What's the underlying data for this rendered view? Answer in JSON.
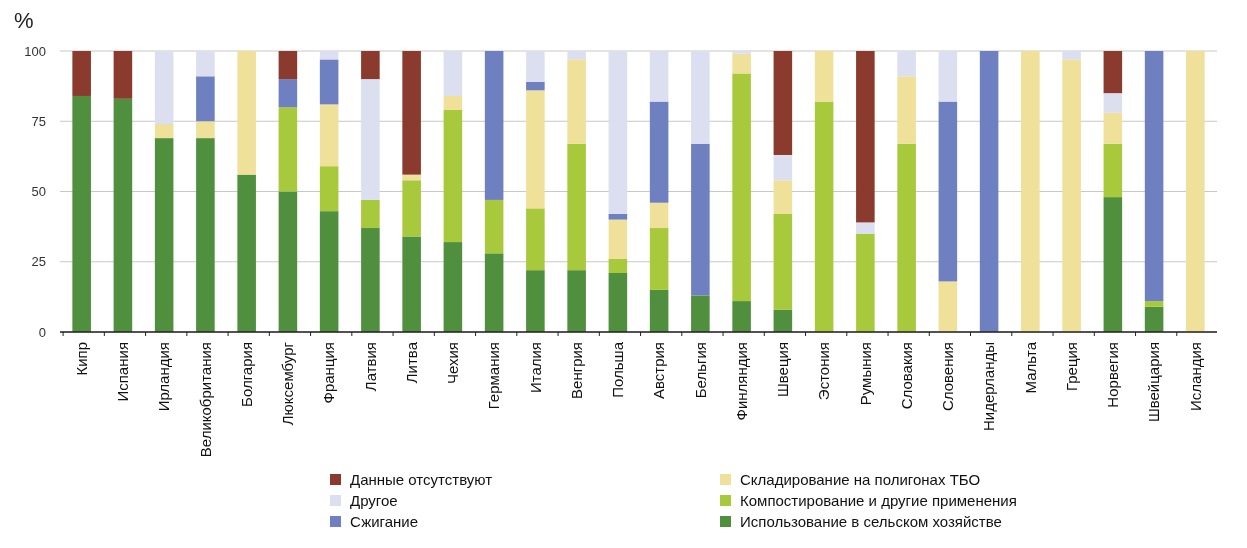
{
  "chart_data": {
    "type": "bar",
    "stacked": true,
    "ylabel": "%",
    "ylim": [
      0,
      100
    ],
    "yticks": [
      0,
      25,
      50,
      75,
      100
    ],
    "grid": "y",
    "legend": "bottom",
    "categories": [
      "Кипр",
      "Испания",
      "Ирландия",
      "Великобритания",
      "Болгария",
      "Люксембург",
      "Франция",
      "Латвия",
      "Литва",
      "Чехия",
      "Германия",
      "Италия",
      "Венгрия",
      "Польша",
      "Австрия",
      "Бельгия",
      "Финляндия",
      "Швеция",
      "Эстония",
      "Румыния",
      "Словакия",
      "Словения",
      "Нидерланды",
      "Мальта",
      "Греция",
      "Норвегия",
      "Швейцария",
      "Исландия"
    ],
    "series": [
      {
        "name": "Использование в сельском хозяйстве",
        "color": "#4f8f3e",
        "values": [
          84,
          83,
          69,
          69,
          56,
          50,
          43,
          37,
          34,
          32,
          28,
          22,
          22,
          21,
          15,
          13,
          11,
          8,
          0,
          0,
          0,
          0,
          0,
          0,
          0,
          48,
          9,
          0
        ]
      },
      {
        "name": "Компостирование и другие применения",
        "color": "#a9c93c",
        "values": [
          0,
          0,
          0,
          0,
          0,
          30,
          16,
          10,
          20,
          47,
          19,
          22,
          45,
          5,
          22,
          0,
          81,
          34,
          82,
          35,
          67,
          0,
          0,
          0,
          0,
          19,
          2,
          0
        ]
      },
      {
        "name": "Складирование на полигонах ТБО",
        "color": "#efe09a",
        "values": [
          0,
          0,
          5,
          6,
          44,
          0,
          22,
          0,
          2,
          5,
          0,
          42,
          30,
          14,
          9,
          0,
          7,
          12,
          18,
          0,
          24,
          18,
          0,
          100,
          97,
          11,
          0,
          100
        ]
      },
      {
        "name": "Сжигание",
        "color": "#6f80c0",
        "values": [
          0,
          0,
          0,
          16,
          0,
          10,
          16,
          0,
          0,
          0,
          53,
          3,
          0,
          2,
          36,
          54,
          0,
          0,
          0,
          0,
          0,
          64,
          100,
          0,
          0,
          0,
          89,
          0
        ]
      },
      {
        "name": "Другое",
        "color": "#dcdff0",
        "values": [
          0,
          0,
          26,
          9,
          0,
          0,
          3,
          43,
          0,
          16,
          0,
          11,
          3,
          58,
          18,
          33,
          1,
          9,
          0,
          4,
          9,
          18,
          0,
          0,
          3,
          7,
          0,
          0
        ]
      },
      {
        "name": "Данные отсутствуют",
        "color": "#8b3a2e",
        "values": [
          16,
          17,
          0,
          0,
          0,
          10,
          0,
          10,
          44,
          0,
          0,
          0,
          0,
          0,
          0,
          0,
          0,
          37,
          0,
          61,
          0,
          0,
          0,
          0,
          0,
          15,
          0,
          0
        ]
      }
    ]
  }
}
